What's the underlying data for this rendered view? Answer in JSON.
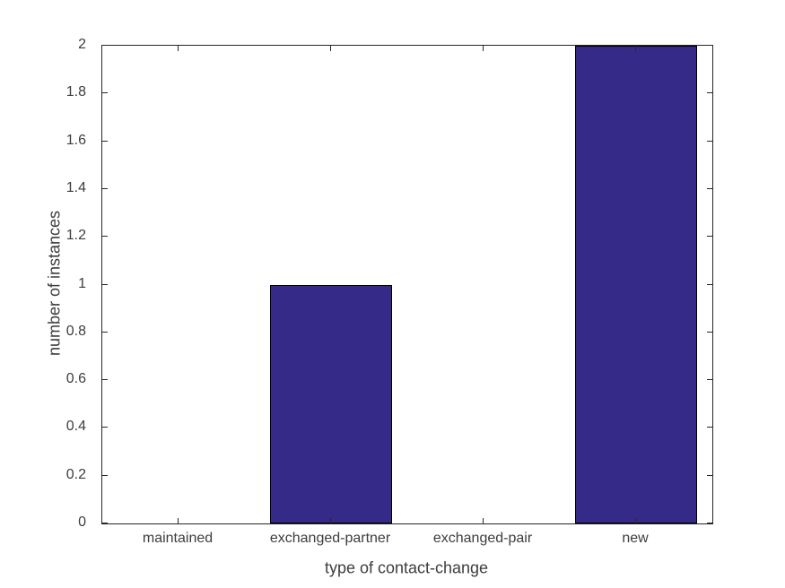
{
  "chart_data": {
    "type": "bar",
    "categories": [
      "maintained",
      "exchanged-partner",
      "exchanged-pair",
      "new"
    ],
    "values": [
      0,
      1,
      0,
      2
    ],
    "title": "",
    "xlabel": "type of contact-change",
    "ylabel": "number of instances",
    "ylim": [
      0,
      2
    ],
    "ytick_step": 0.2,
    "ytick_labels": [
      "0",
      "0.2",
      "0.4",
      "0.6",
      "0.8",
      "1",
      "1.2",
      "1.4",
      "1.6",
      "1.8",
      "2"
    ],
    "grid": false,
    "legend": null,
    "colors": {
      "bar_fill": "#352A87",
      "bar_edge": "#000000",
      "axis": "#262626",
      "text": "#3d3d3d",
      "background": "#ffffff"
    }
  }
}
